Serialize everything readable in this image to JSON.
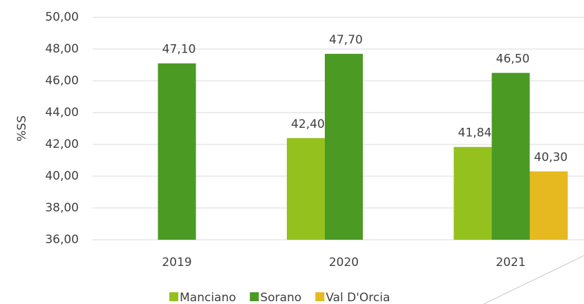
{
  "chart_data": {
    "type": "bar",
    "y_label": "%SS",
    "categories": [
      "2019",
      "2020",
      "2021"
    ],
    "series": [
      {
        "name": "Manciano",
        "color": "#95c11f",
        "values": [
          null,
          42.4,
          41.84
        ],
        "value_labels": [
          null,
          "42,40",
          "41,84"
        ]
      },
      {
        "name": "Sorano",
        "color": "#4a9a24",
        "values": [
          47.1,
          47.7,
          46.5
        ],
        "value_labels": [
          "47,10",
          "47,70",
          "46,50"
        ]
      },
      {
        "name": "Val D'Orcia",
        "color": "#e5b91f",
        "values": [
          null,
          null,
          40.3
        ],
        "value_labels": [
          null,
          null,
          "40,30"
        ]
      }
    ],
    "ylim": [
      36,
      50
    ],
    "yticks": [
      {
        "value": 36,
        "label": "36,00"
      },
      {
        "value": 38,
        "label": "38,00"
      },
      {
        "value": 40,
        "label": "40,00"
      },
      {
        "value": 42,
        "label": "42,00"
      },
      {
        "value": 44,
        "label": "44,00"
      },
      {
        "value": 46,
        "label": "46,00"
      },
      {
        "value": 48,
        "label": "48,00"
      },
      {
        "value": 50,
        "label": "50,00"
      }
    ],
    "grid": true,
    "legend": "bottom"
  }
}
